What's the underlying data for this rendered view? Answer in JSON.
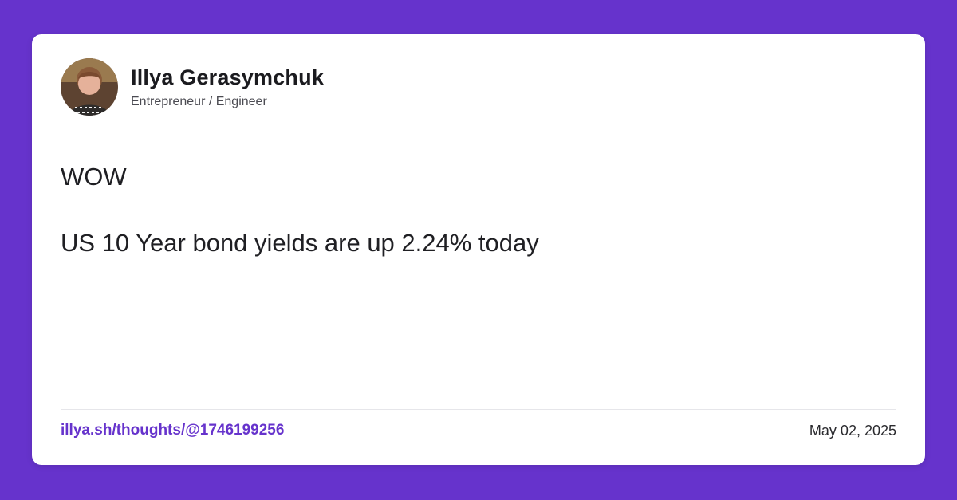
{
  "author": {
    "name": "Illya Gerasymchuk",
    "title": "Entrepreneur / Engineer"
  },
  "post": {
    "lines": [
      "WOW",
      "US 10 Year bond yields are up 2.24% today"
    ]
  },
  "footer": {
    "link": "illya.sh/thoughts/@1746199256",
    "date": "May 02, 2025"
  },
  "colors": {
    "background": "#6633cc",
    "card": "#ffffff",
    "link": "#6633cc"
  },
  "icons": {
    "avatar": "author-avatar"
  }
}
